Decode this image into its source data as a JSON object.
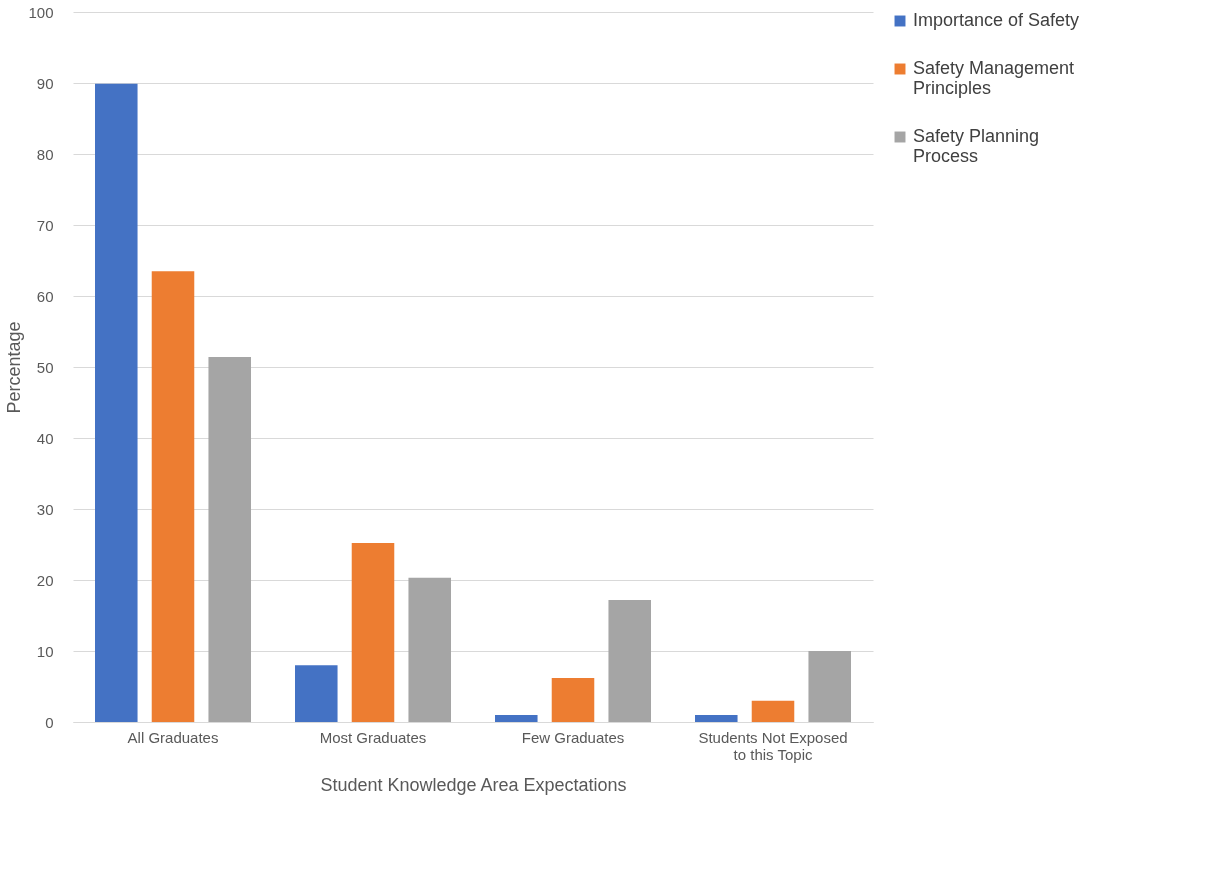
{
  "chart_data": {
    "type": "bar",
    "xlabel": "Student Knowledge Area Expectations",
    "ylabel": "Percentage",
    "categories": [
      "All Graduates",
      "Most Graduates",
      "Few Graduates",
      "Students Not Exposed to this Topic"
    ],
    "series": [
      {
        "name": "Importance of Safety",
        "color": "#4472c4",
        "values": [
          89.9,
          8,
          1,
          1
        ]
      },
      {
        "name": "Safety Management Principles",
        "color": "#ed7d31",
        "values": [
          63.5,
          25.2,
          6.2,
          3
        ]
      },
      {
        "name": "Safety Planning Process",
        "color": "#a5a5a5",
        "values": [
          51.4,
          20.3,
          17.2,
          10
        ]
      }
    ],
    "ylim": [
      0,
      100
    ],
    "yticks": [
      0,
      10,
      20,
      30,
      40,
      50,
      60,
      70,
      80,
      90,
      100
    ],
    "grid": "y",
    "legend": "right"
  }
}
